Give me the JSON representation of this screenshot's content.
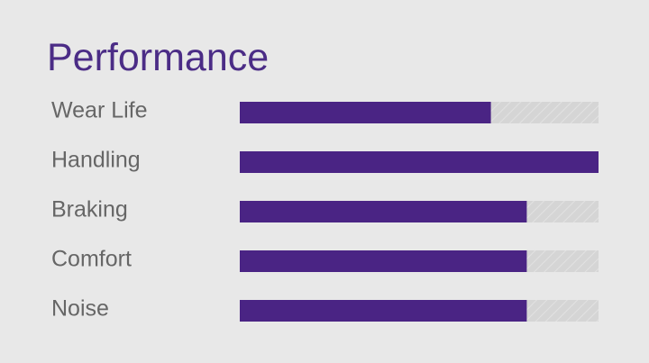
{
  "chart_data": {
    "type": "bar",
    "orientation": "horizontal",
    "title": "Performance",
    "categories": [
      "Wear Life",
      "Handling",
      "Braking",
      "Comfort",
      "Noise"
    ],
    "values": [
      70,
      100,
      80,
      80,
      80
    ],
    "color": "#4a2484",
    "xlim": [
      0,
      100
    ]
  }
}
